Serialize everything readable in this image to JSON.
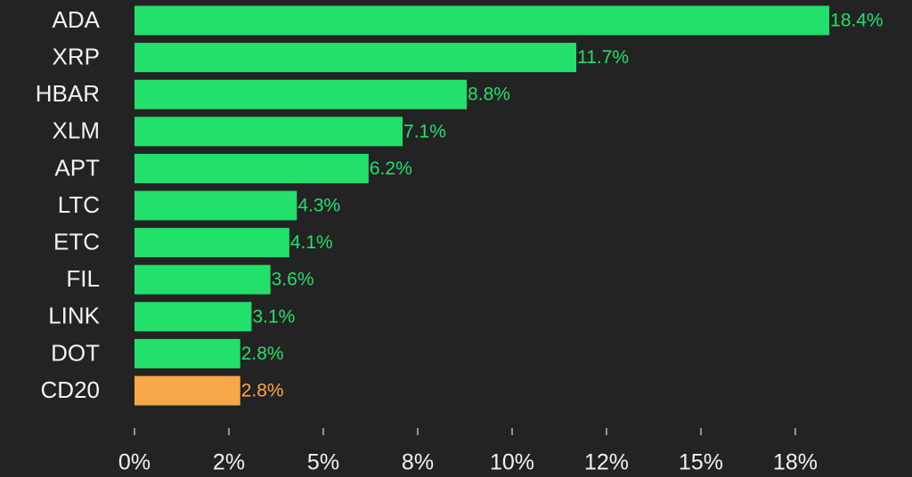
{
  "chart_data": {
    "type": "hbar",
    "categories": [
      "ADA",
      "XRP",
      "HBAR",
      "XLM",
      "APT",
      "LTC",
      "ETC",
      "FIL",
      "LINK",
      "DOT",
      "CD20"
    ],
    "values": [
      18.4,
      11.7,
      8.8,
      7.1,
      6.2,
      4.3,
      4.1,
      3.6,
      3.1,
      2.8,
      2.8
    ],
    "value_labels": [
      "18.4%",
      "11.7%",
      "8.8%",
      "7.1%",
      "6.2%",
      "4.3%",
      "4.1%",
      "3.6%",
      "3.1%",
      "2.8%",
      "2.8%"
    ],
    "colors": [
      "#22e06c",
      "#22e06c",
      "#22e06c",
      "#22e06c",
      "#22e06c",
      "#22e06c",
      "#22e06c",
      "#22e06c",
      "#22e06c",
      "#22e06c",
      "#f7a94a"
    ],
    "xlim": [
      0,
      20
    ],
    "xticks": [
      {
        "value": 0,
        "label": "0%"
      },
      {
        "value": 2.5,
        "label": "2%"
      },
      {
        "value": 5,
        "label": "5%"
      },
      {
        "value": 7.5,
        "label": "8%"
      },
      {
        "value": 10,
        "label": "10%"
      },
      {
        "value": 12.5,
        "label": "12%"
      },
      {
        "value": 15,
        "label": "15%"
      },
      {
        "value": 17.5,
        "label": "18%"
      }
    ]
  }
}
